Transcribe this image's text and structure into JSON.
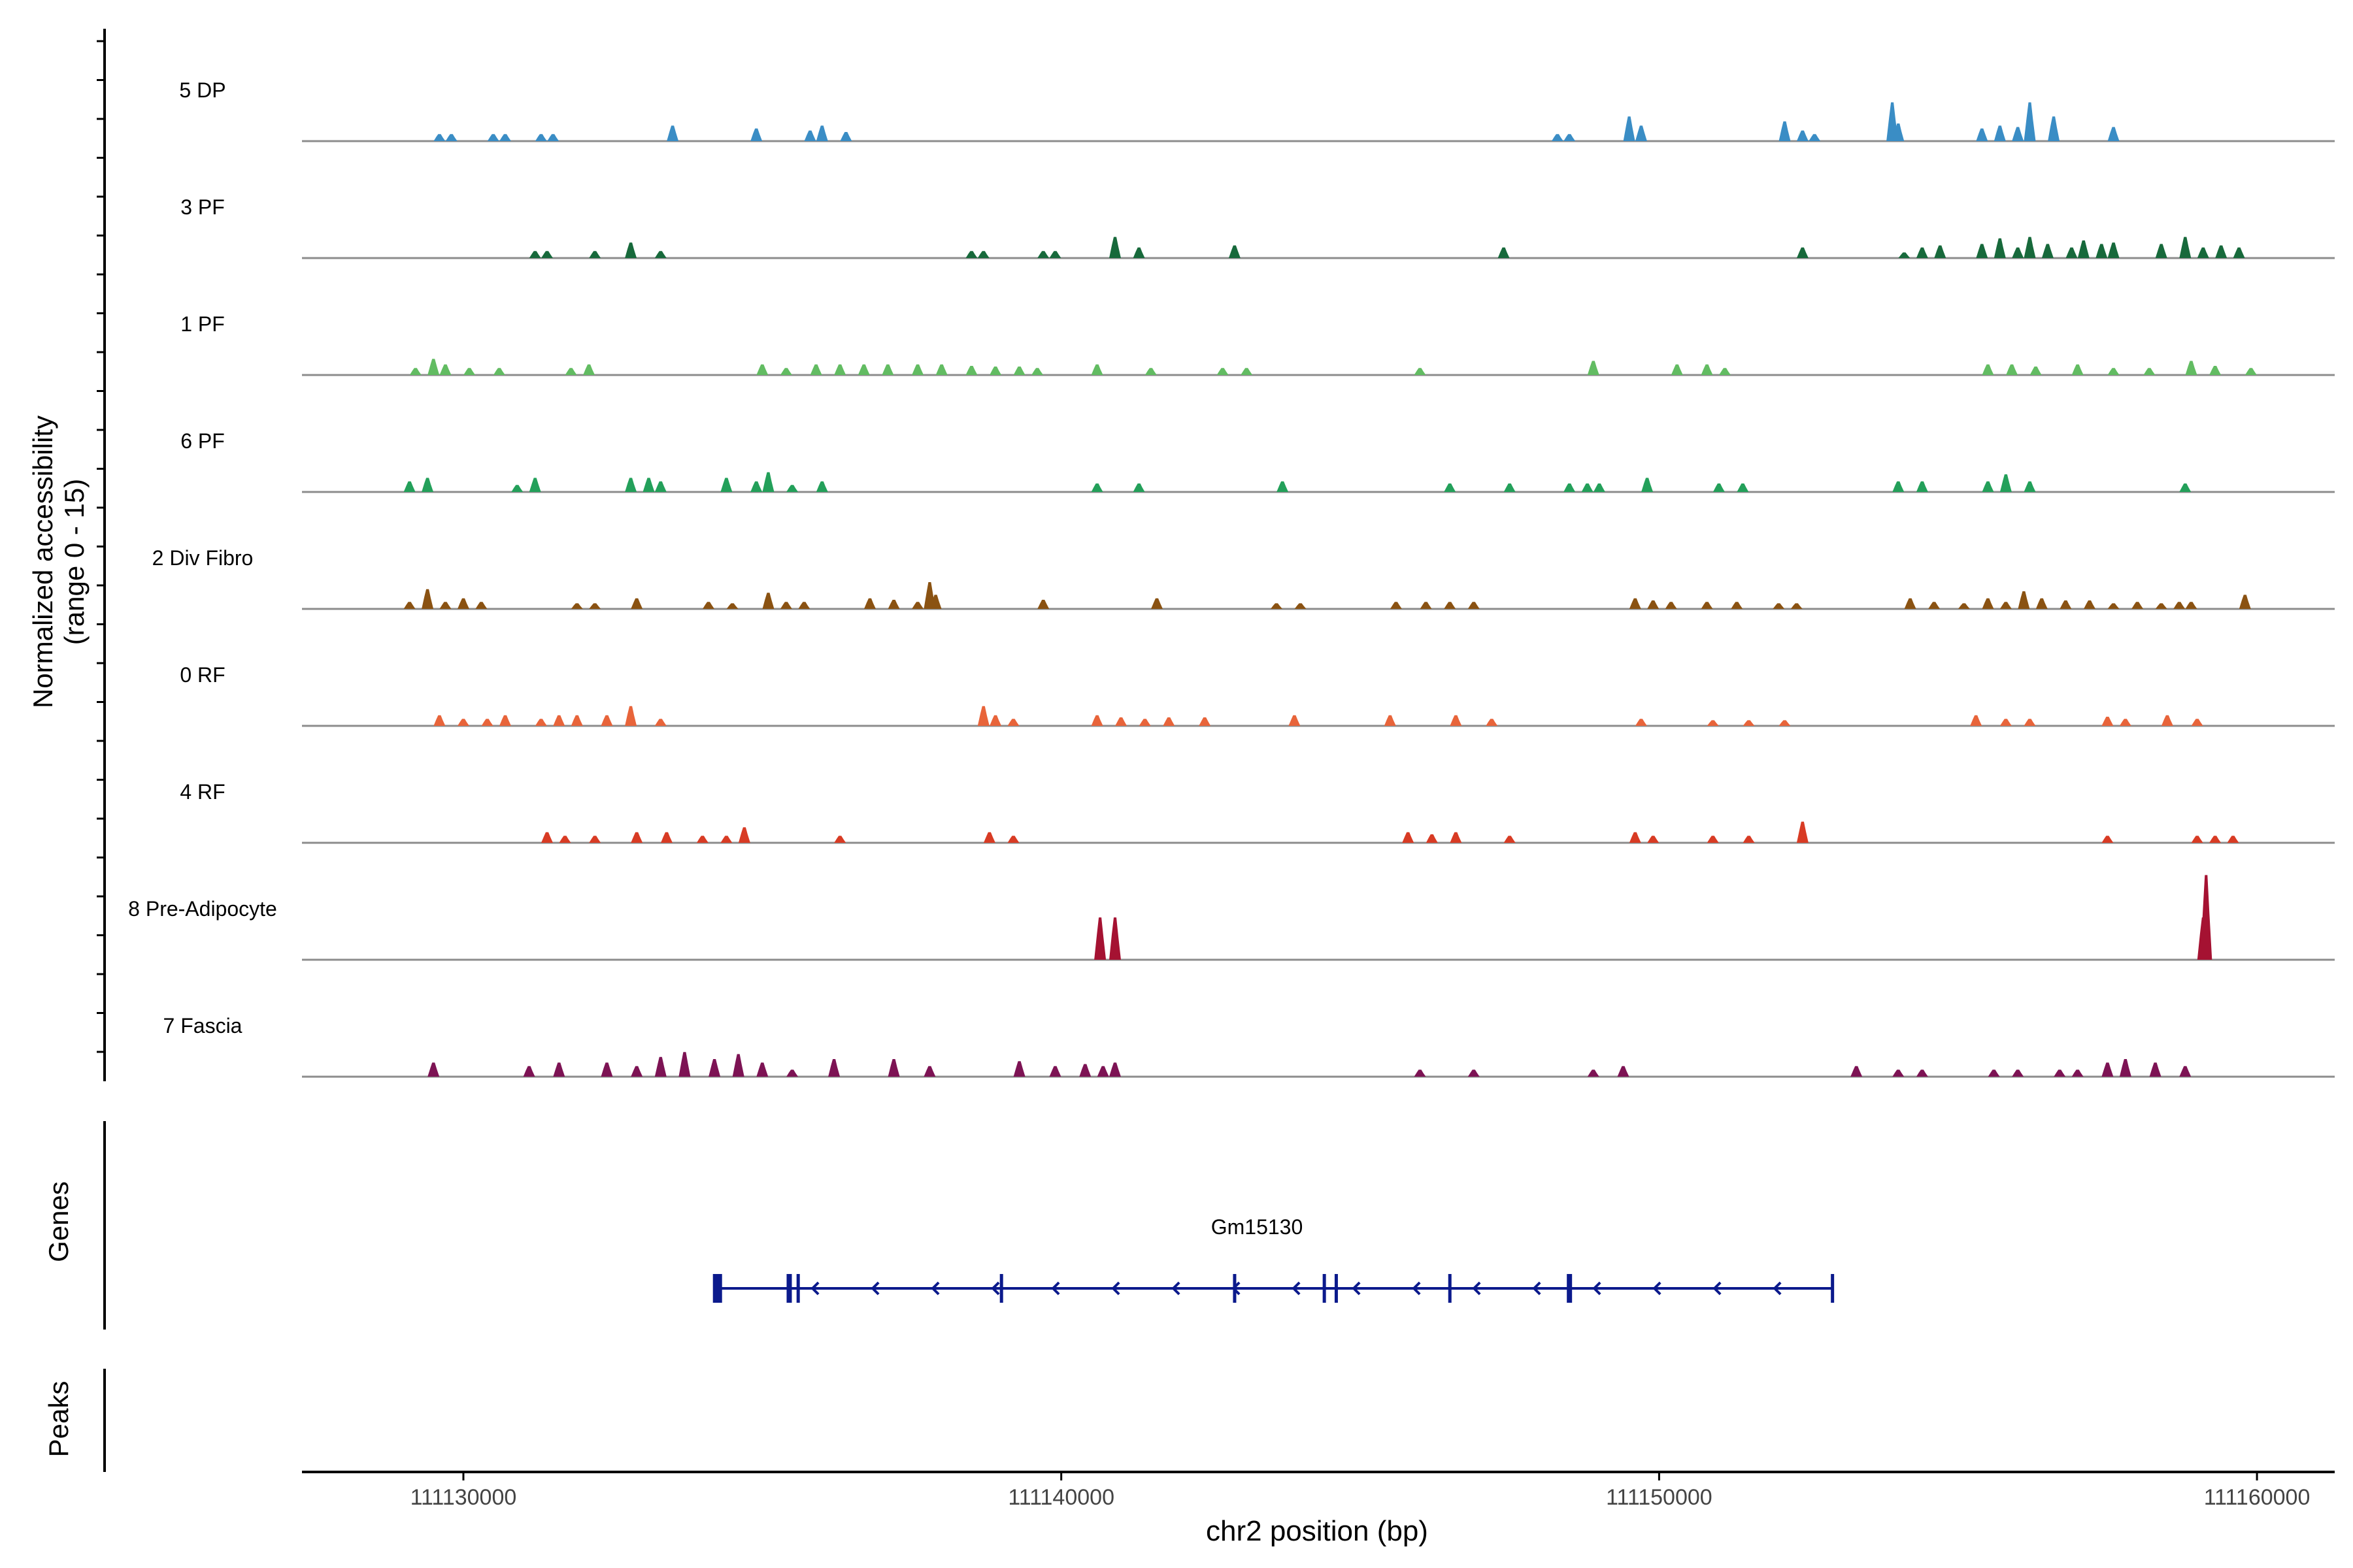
{
  "chart_data": {
    "type": "area",
    "title": "",
    "xlabel": "chr2 position (bp)",
    "ylabel_line1": "Normalized accessibility",
    "ylabel_line2": "(range 0 - 15)",
    "xlim": [
      111127300,
      111161300
    ],
    "ylim": [
      0,
      15
    ],
    "x_ticks": [
      111130000,
      111140000,
      111150000,
      111160000
    ],
    "x_tick_labels": [
      "111130000",
      "111140000",
      "111150000",
      "111160000"
    ],
    "genes_label": "Genes",
    "peaks_label": "Peaks",
    "gene": {
      "name": "Gm15130",
      "strand": "-",
      "start": 111134200,
      "end": 111152900,
      "exons": [
        111134250,
        111135450,
        111135600,
        111139000,
        111142900,
        111144400,
        111144600,
        111146500,
        111148500,
        111152900
      ]
    },
    "series": [
      {
        "name": "5 DP",
        "color": "#3a8dc5",
        "peaks": [
          [
            111129600,
            1
          ],
          [
            111129800,
            1
          ],
          [
            111130500,
            1
          ],
          [
            111130700,
            1
          ],
          [
            111131300,
            1
          ],
          [
            111131500,
            1
          ],
          [
            111133500,
            2.2
          ],
          [
            111134900,
            1.8
          ],
          [
            111135800,
            1.5
          ],
          [
            111136000,
            2.2
          ],
          [
            111136400,
            1.3
          ],
          [
            111148300,
            1
          ],
          [
            111148500,
            1
          ],
          [
            111149500,
            3.5
          ],
          [
            111149700,
            2.2
          ],
          [
            111152100,
            2.8
          ],
          [
            111152400,
            1.5
          ],
          [
            111152600,
            1
          ],
          [
            111153900,
            5.5
          ],
          [
            111154000,
            2.5
          ],
          [
            111155400,
            1.8
          ],
          [
            111155700,
            2.2
          ],
          [
            111156000,
            2
          ],
          [
            111156200,
            5.5
          ],
          [
            111156600,
            3.5
          ],
          [
            111157600,
            2
          ]
        ]
      },
      {
        "name": "3 PF",
        "color": "#17693b",
        "peaks": [
          [
            111131200,
            1
          ],
          [
            111131400,
            1
          ],
          [
            111132200,
            1
          ],
          [
            111132800,
            2.2
          ],
          [
            111133300,
            1
          ],
          [
            111138500,
            1
          ],
          [
            111138700,
            1
          ],
          [
            111139700,
            1
          ],
          [
            111139900,
            1
          ],
          [
            111140900,
            3
          ],
          [
            111141300,
            1.5
          ],
          [
            111142900,
            1.8
          ],
          [
            111147400,
            1.5
          ],
          [
            111152400,
            1.5
          ],
          [
            111154100,
            0.8
          ],
          [
            111154400,
            1.5
          ],
          [
            111154700,
            1.8
          ],
          [
            111155400,
            2
          ],
          [
            111155700,
            2.8
          ],
          [
            111156000,
            1.5
          ],
          [
            111156200,
            3
          ],
          [
            111156500,
            2
          ],
          [
            111156900,
            1.5
          ],
          [
            111157100,
            2.5
          ],
          [
            111157400,
            2
          ],
          [
            111157600,
            2.2
          ],
          [
            111158400,
            2
          ],
          [
            111158800,
            3
          ],
          [
            111159100,
            1.5
          ],
          [
            111159400,
            1.8
          ],
          [
            111159700,
            1.5
          ]
        ]
      },
      {
        "name": "1 PF",
        "color": "#62bc62",
        "peaks": [
          [
            111129200,
            1
          ],
          [
            111129500,
            2.3
          ],
          [
            111129700,
            1.5
          ],
          [
            111130100,
            1
          ],
          [
            111130600,
            1
          ],
          [
            111131800,
            1
          ],
          [
            111132100,
            1.5
          ],
          [
            111135000,
            1.5
          ],
          [
            111135400,
            1
          ],
          [
            111135900,
            1.5
          ],
          [
            111136300,
            1.5
          ],
          [
            111136700,
            1.5
          ],
          [
            111137100,
            1.5
          ],
          [
            111137600,
            1.5
          ],
          [
            111138000,
            1.5
          ],
          [
            111138500,
            1.3
          ],
          [
            111138900,
            1.2
          ],
          [
            111139300,
            1.2
          ],
          [
            111139600,
            1
          ],
          [
            111140600,
            1.5
          ],
          [
            111141500,
            1
          ],
          [
            111142700,
            1
          ],
          [
            111143100,
            1
          ],
          [
            111146000,
            1
          ],
          [
            111148900,
            2
          ],
          [
            111150300,
            1.5
          ],
          [
            111150800,
            1.5
          ],
          [
            111151100,
            1
          ],
          [
            111155500,
            1.5
          ],
          [
            111155900,
            1.5
          ],
          [
            111156300,
            1.2
          ],
          [
            111157000,
            1.5
          ],
          [
            111157600,
            1
          ],
          [
            111158200,
            1
          ],
          [
            111158900,
            2
          ],
          [
            111159300,
            1.3
          ],
          [
            111159900,
            1
          ]
        ]
      },
      {
        "name": "6 PF",
        "color": "#23a05a",
        "peaks": [
          [
            111129100,
            1.5
          ],
          [
            111129400,
            2
          ],
          [
            111130900,
            1
          ],
          [
            111131200,
            2
          ],
          [
            111132800,
            2
          ],
          [
            111133100,
            2
          ],
          [
            111133300,
            1.5
          ],
          [
            111134400,
            2
          ],
          [
            111134900,
            1.5
          ],
          [
            111135100,
            2.8
          ],
          [
            111135500,
            1
          ],
          [
            111136000,
            1.5
          ],
          [
            111140600,
            1.2
          ],
          [
            111141300,
            1.2
          ],
          [
            111143700,
            1.5
          ],
          [
            111146500,
            1.2
          ],
          [
            111147500,
            1.2
          ],
          [
            111148500,
            1.2
          ],
          [
            111148800,
            1.2
          ],
          [
            111149000,
            1.2
          ],
          [
            111149800,
            2
          ],
          [
            111151000,
            1.2
          ],
          [
            111151400,
            1.2
          ],
          [
            111154000,
            1.5
          ],
          [
            111154400,
            1.5
          ],
          [
            111155500,
            1.5
          ],
          [
            111155800,
            2.5
          ],
          [
            111156200,
            1.5
          ],
          [
            111158800,
            1.2
          ]
        ]
      },
      {
        "name": "2 Div Fibro",
        "color": "#8a5212",
        "peaks": [
          [
            111129100,
            1
          ],
          [
            111129400,
            2.8
          ],
          [
            111129700,
            1
          ],
          [
            111130000,
            1.5
          ],
          [
            111130300,
            1
          ],
          [
            111131900,
            0.8
          ],
          [
            111132200,
            0.8
          ],
          [
            111132900,
            1.5
          ],
          [
            111134100,
            1
          ],
          [
            111134500,
            0.8
          ],
          [
            111135100,
            2.3
          ],
          [
            111135400,
            1
          ],
          [
            111135700,
            1
          ],
          [
            111136800,
            1.5
          ],
          [
            111137200,
            1.3
          ],
          [
            111137600,
            1
          ],
          [
            111137800,
            3.8
          ],
          [
            111137900,
            2
          ],
          [
            111139700,
            1.3
          ],
          [
            111141600,
            1.5
          ],
          [
            111143600,
            0.8
          ],
          [
            111144000,
            0.8
          ],
          [
            111145600,
            1
          ],
          [
            111146100,
            1
          ],
          [
            111146500,
            1
          ],
          [
            111146900,
            1
          ],
          [
            111149600,
            1.5
          ],
          [
            111149900,
            1.2
          ],
          [
            111150200,
            1
          ],
          [
            111150800,
            1
          ],
          [
            111151300,
            1
          ],
          [
            111152000,
            0.8
          ],
          [
            111152300,
            0.8
          ],
          [
            111154200,
            1.5
          ],
          [
            111154600,
            1
          ],
          [
            111155100,
            0.8
          ],
          [
            111155500,
            1.5
          ],
          [
            111155800,
            1
          ],
          [
            111156100,
            2.5
          ],
          [
            111156400,
            1.5
          ],
          [
            111156800,
            1.2
          ],
          [
            111157200,
            1.2
          ],
          [
            111157600,
            0.8
          ],
          [
            111158000,
            1
          ],
          [
            111158400,
            0.8
          ],
          [
            111158700,
            1
          ],
          [
            111158900,
            1
          ],
          [
            111159800,
            2
          ]
        ]
      },
      {
        "name": "0 RF",
        "color": "#e8643a",
        "peaks": [
          [
            111129600,
            1.5
          ],
          [
            111130000,
            1
          ],
          [
            111130400,
            1
          ],
          [
            111130700,
            1.5
          ],
          [
            111131300,
            1
          ],
          [
            111131600,
            1.5
          ],
          [
            111131900,
            1.5
          ],
          [
            111132400,
            1.5
          ],
          [
            111132800,
            2.8
          ],
          [
            111133300,
            1
          ],
          [
            111138700,
            2.8
          ],
          [
            111138900,
            1.5
          ],
          [
            111139200,
            1
          ],
          [
            111140600,
            1.5
          ],
          [
            111141000,
            1.2
          ],
          [
            111141400,
            1
          ],
          [
            111141800,
            1.2
          ],
          [
            111142400,
            1.2
          ],
          [
            111143900,
            1.5
          ],
          [
            111145500,
            1.5
          ],
          [
            111146600,
            1.5
          ],
          [
            111147200,
            1
          ],
          [
            111149700,
            1
          ],
          [
            111150900,
            0.8
          ],
          [
            111151500,
            0.8
          ],
          [
            111152100,
            0.8
          ],
          [
            111155300,
            1.5
          ],
          [
            111155800,
            1
          ],
          [
            111156200,
            1
          ],
          [
            111157500,
            1.3
          ],
          [
            111157800,
            1
          ],
          [
            111158500,
            1.5
          ],
          [
            111159000,
            1
          ]
        ]
      },
      {
        "name": "4 RF",
        "color": "#d83b24",
        "peaks": [
          [
            111131400,
            1.5
          ],
          [
            111131700,
            1
          ],
          [
            111132200,
            1
          ],
          [
            111132900,
            1.5
          ],
          [
            111133400,
            1.5
          ],
          [
            111134000,
            1
          ],
          [
            111134400,
            1
          ],
          [
            111134700,
            2.2
          ],
          [
            111136300,
            1
          ],
          [
            111138800,
            1.5
          ],
          [
            111139200,
            1
          ],
          [
            111145800,
            1.5
          ],
          [
            111146200,
            1.2
          ],
          [
            111146600,
            1.5
          ],
          [
            111147500,
            1
          ],
          [
            111149600,
            1.5
          ],
          [
            111149900,
            1
          ],
          [
            111150900,
            1
          ],
          [
            111151500,
            1
          ],
          [
            111152400,
            3
          ],
          [
            111157500,
            1
          ],
          [
            111159000,
            1
          ],
          [
            111159300,
            1
          ],
          [
            111159600,
            1
          ]
        ]
      },
      {
        "name": "8 Pre-Adipocyte",
        "color": "#a51232",
        "peaks": [
          [
            111140650,
            6
          ],
          [
            111140900,
            6
          ],
          [
            111159100,
            6
          ],
          [
            111159150,
            12
          ]
        ]
      },
      {
        "name": "7 Fascia",
        "color": "#7d1354",
        "peaks": [
          [
            111129500,
            2
          ],
          [
            111131100,
            1.5
          ],
          [
            111131600,
            2
          ],
          [
            111132400,
            2
          ],
          [
            111132900,
            1.5
          ],
          [
            111133300,
            2.8
          ],
          [
            111133700,
            3.5
          ],
          [
            111134200,
            2.5
          ],
          [
            111134600,
            3.2
          ],
          [
            111135000,
            2
          ],
          [
            111135500,
            1
          ],
          [
            111136200,
            2.5
          ],
          [
            111137200,
            2.5
          ],
          [
            111137800,
            1.5
          ],
          [
            111139300,
            2.2
          ],
          [
            111139900,
            1.5
          ],
          [
            111140400,
            1.8
          ],
          [
            111140700,
            1.5
          ],
          [
            111140900,
            2
          ],
          [
            111146000,
            1
          ],
          [
            111146900,
            1
          ],
          [
            111148900,
            1
          ],
          [
            111149400,
            1.5
          ],
          [
            111153300,
            1.5
          ],
          [
            111154000,
            1
          ],
          [
            111154400,
            1
          ],
          [
            111155600,
            1
          ],
          [
            111156000,
            1
          ],
          [
            111156700,
            1
          ],
          [
            111157000,
            1
          ],
          [
            111157500,
            2
          ],
          [
            111157800,
            2.5
          ],
          [
            111158300,
            2
          ],
          [
            111158800,
            1.5
          ]
        ]
      }
    ]
  }
}
